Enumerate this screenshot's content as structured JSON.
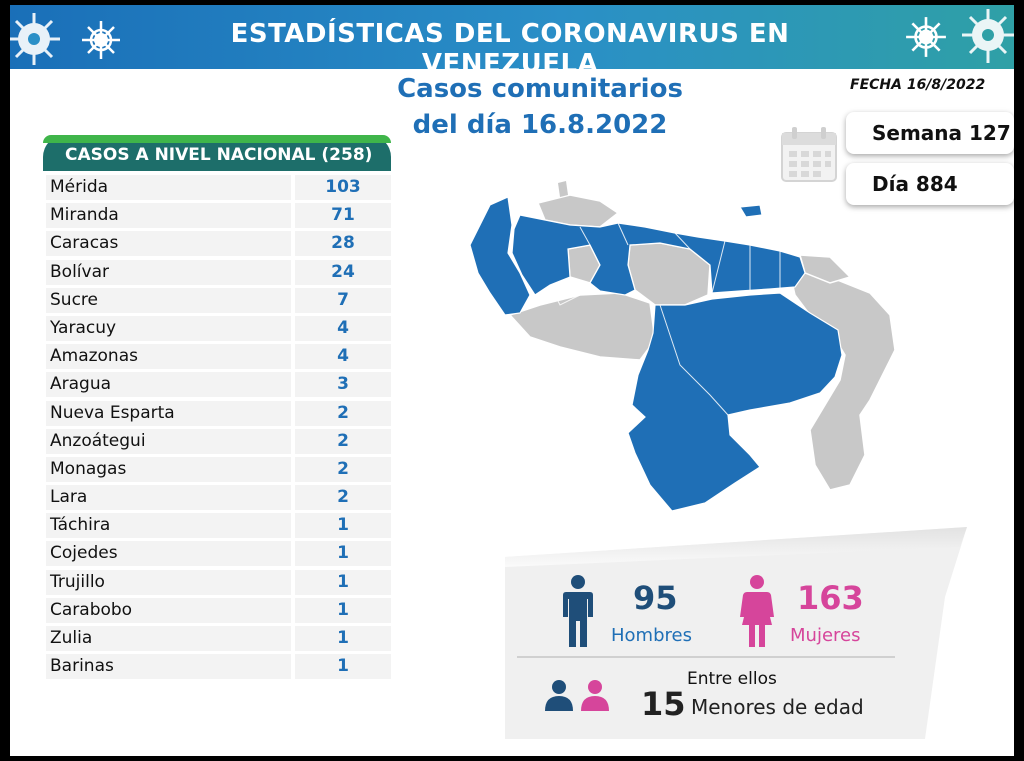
{
  "header": {
    "title": "ESTADÍSTICAS DEL CORONAVIRUS EN VENEZUELA",
    "subtitle_line1": "Casos comunitarios",
    "subtitle_line2": "del día 16.8.2022",
    "fecha": "FECHA 16/8/2022"
  },
  "badges": {
    "semana": "Semana 127",
    "dia": "Día 884"
  },
  "table": {
    "header": "CASOS A NIVEL NACIONAL  (258)"
  },
  "chart_data": {
    "type": "table",
    "title": "CASOS A NIVEL NACIONAL  (258)",
    "total": 258,
    "rows": [
      {
        "state": "Mérida",
        "cases": 103
      },
      {
        "state": "Miranda",
        "cases": 71
      },
      {
        "state": "Caracas",
        "cases": 28
      },
      {
        "state": "Bolívar",
        "cases": 24
      },
      {
        "state": "Sucre",
        "cases": 7
      },
      {
        "state": "Yaracuy",
        "cases": 4
      },
      {
        "state": "Amazonas",
        "cases": 4
      },
      {
        "state": "Aragua",
        "cases": 3
      },
      {
        "state": "Nueva Esparta",
        "cases": 2
      },
      {
        "state": "Anzoátegui",
        "cases": 2
      },
      {
        "state": "Monagas",
        "cases": 2
      },
      {
        "state": "Lara",
        "cases": 2
      },
      {
        "state": "Táchira",
        "cases": 1
      },
      {
        "state": "Cojedes",
        "cases": 1
      },
      {
        "state": "Trujillo",
        "cases": 1
      },
      {
        "state": "Carabobo",
        "cases": 1
      },
      {
        "state": "Zulia",
        "cases": 1
      },
      {
        "state": "Barinas",
        "cases": 1
      }
    ]
  },
  "gender": {
    "men_count": "95",
    "men_label": "Hombres",
    "women_count": "163",
    "women_label": "Mujeres",
    "minors_intro": "Entre ellos",
    "minors_count": "15",
    "minors_label": "Menores de edad"
  },
  "colors": {
    "map_affected": "#1f6fb6",
    "map_unaffected": "#c8c8c8",
    "men": "#1f4e79",
    "women": "#d6459b",
    "table_header": "#1d6e6a"
  }
}
